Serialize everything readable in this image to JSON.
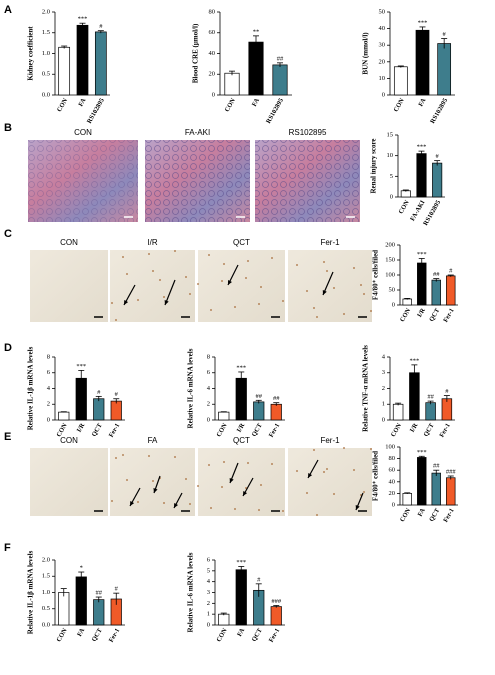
{
  "panel_labels": [
    "A",
    "B",
    "C",
    "D",
    "E",
    "F"
  ],
  "image_rows": [
    [
      "CON",
      "FA-AKI",
      "RS102895"
    ],
    [
      "CON",
      "I/R",
      "QCT",
      "Fer-1"
    ],
    [
      "CON",
      "FA",
      "QCT",
      "Fer-1"
    ]
  ],
  "chart_data": [
    {
      "type": "bar",
      "ylabel": "Kidney coefficient",
      "categories": [
        "CON",
        "FA",
        "RS102895"
      ],
      "values": [
        1.15,
        1.68,
        1.52
      ],
      "errors": [
        0.03,
        0.05,
        0.03
      ],
      "significance": [
        null,
        "***",
        "#"
      ],
      "colors": [
        "#ffffff",
        "#000000",
        "#3e7d8c"
      ],
      "ylim": [
        0,
        2
      ],
      "yticks": [
        {
          "value": 0,
          "label": "0.0"
        },
        {
          "value": 0.5,
          "label": "0.5"
        },
        {
          "value": 1,
          "label": "1.0"
        },
        {
          "value": 1.5,
          "label": "1.5"
        },
        {
          "value": 2,
          "label": "2.0"
        }
      ]
    },
    {
      "type": "bar",
      "ylabel": "Blood CRE (μmol/l)",
      "categories": [
        "CON",
        "FA",
        "RS102895"
      ],
      "values": [
        21,
        51,
        29
      ],
      "errors": [
        2,
        6,
        2
      ],
      "significance": [
        null,
        "**",
        "##"
      ],
      "colors": [
        "#ffffff",
        "#000000",
        "#3e7d8c"
      ],
      "ylim": [
        0,
        80
      ],
      "yticks": [
        0,
        20,
        40,
        60,
        80
      ]
    },
    {
      "type": "bar",
      "ylabel": "BUN (mmol/l)",
      "categories": [
        "CON",
        "FA",
        "RS102895"
      ],
      "values": [
        17,
        39,
        31
      ],
      "errors": [
        0.5,
        2,
        3
      ],
      "significance": [
        null,
        "***",
        "#"
      ],
      "colors": [
        "#ffffff",
        "#000000",
        "#3e7d8c"
      ],
      "ylim": [
        0,
        50
      ],
      "yticks": [
        0,
        10,
        20,
        30,
        40,
        50
      ]
    },
    {
      "type": "bar",
      "ylabel": "Renal injury score",
      "categories": [
        "CON",
        "FA-AKI",
        "RS102895"
      ],
      "values": [
        1.5,
        10.5,
        8.2
      ],
      "errors": [
        0.2,
        0.6,
        0.6
      ],
      "significance": [
        null,
        "***",
        "#"
      ],
      "colors": [
        "#ffffff",
        "#000000",
        "#3e7d8c"
      ],
      "ylim": [
        0,
        15
      ],
      "yticks": [
        0,
        5,
        10,
        15
      ]
    },
    {
      "type": "bar",
      "ylabel": "F4/80⁺ cells/filed",
      "categories": [
        "CON",
        "I/R",
        "QCT",
        "Fer-1"
      ],
      "values": [
        20,
        140,
        83,
        97
      ],
      "errors": [
        2,
        15,
        5,
        3
      ],
      "significance": [
        null,
        "***",
        "##",
        "#"
      ],
      "colors": [
        "#ffffff",
        "#000000",
        "#3e7d8c",
        "#f05a28"
      ],
      "ylim": [
        0,
        200
      ],
      "yticks": [
        0,
        50,
        100,
        150,
        200
      ]
    },
    {
      "type": "bar",
      "ylabel": "Relative IL-1β mRNA levels",
      "categories": [
        "CON",
        "I/R",
        "QCT",
        "Fer-1"
      ],
      "values": [
        1.0,
        5.3,
        2.7,
        2.4
      ],
      "errors": [
        0.05,
        1.0,
        0.3,
        0.3
      ],
      "significance": [
        null,
        "***",
        "#",
        "#"
      ],
      "colors": [
        "#ffffff",
        "#000000",
        "#3e7d8c",
        "#f05a28"
      ],
      "ylim": [
        0,
        8
      ],
      "yticks": [
        0,
        2,
        4,
        6,
        8
      ]
    },
    {
      "type": "bar",
      "ylabel": "Relative IL-6 mRNA levels",
      "categories": [
        "CON",
        "I/R",
        "QCT",
        "Fer-1"
      ],
      "values": [
        1.0,
        5.3,
        2.3,
        2.0
      ],
      "errors": [
        0.05,
        0.8,
        0.2,
        0.2
      ],
      "significance": [
        null,
        "***",
        "##",
        "##"
      ],
      "colors": [
        "#ffffff",
        "#000000",
        "#3e7d8c",
        "#f05a28"
      ],
      "ylim": [
        0,
        8
      ],
      "yticks": [
        0,
        2,
        4,
        6,
        8
      ]
    },
    {
      "type": "bar",
      "ylabel": "Relative TNF-α mRNA levels",
      "categories": [
        "CON",
        "I/R",
        "QCT",
        "Fer-1"
      ],
      "values": [
        1.0,
        3.0,
        1.1,
        1.35
      ],
      "errors": [
        0.07,
        0.5,
        0.1,
        0.2
      ],
      "significance": [
        null,
        "***",
        "##",
        "#"
      ],
      "colors": [
        "#ffffff",
        "#000000",
        "#3e7d8c",
        "#f05a28"
      ],
      "ylim": [
        0,
        4
      ],
      "yticks": [
        0,
        1,
        2,
        3,
        4
      ]
    },
    {
      "type": "bar",
      "ylabel": "F4/80⁺ cells/filed",
      "categories": [
        "CON",
        "FA",
        "QCT",
        "Fer-1"
      ],
      "values": [
        20,
        82,
        55,
        47
      ],
      "errors": [
        1,
        2,
        5,
        3
      ],
      "significance": [
        null,
        "***",
        "##",
        "###"
      ],
      "colors": [
        "#ffffff",
        "#000000",
        "#3e7d8c",
        "#f05a28"
      ],
      "ylim": [
        0,
        100
      ],
      "yticks": [
        0,
        20,
        40,
        60,
        80,
        100
      ]
    },
    {
      "type": "bar",
      "ylabel": "Relative IL-1β mRNA levels",
      "categories": [
        "CON",
        "FA",
        "QCT",
        "Fer-1"
      ],
      "values": [
        1.0,
        1.48,
        0.78,
        0.8
      ],
      "errors": [
        0.12,
        0.15,
        0.08,
        0.18
      ],
      "significance": [
        null,
        "*",
        "##",
        "#"
      ],
      "colors": [
        "#ffffff",
        "#000000",
        "#3e7d8c",
        "#f05a28"
      ],
      "ylim": [
        0,
        2
      ],
      "yticks": [
        {
          "value": 0,
          "label": "0.0"
        },
        {
          "value": 0.5,
          "label": "0.5"
        },
        {
          "value": 1,
          "label": "1.0"
        },
        {
          "value": 1.5,
          "label": "1.5"
        },
        {
          "value": 2,
          "label": "2.0"
        }
      ]
    },
    {
      "type": "bar",
      "ylabel": "Relative IL-6 mRNA levels",
      "categories": [
        "CON",
        "FA",
        "QCT",
        "Fer-1"
      ],
      "values": [
        1.0,
        5.1,
        3.2,
        1.7
      ],
      "errors": [
        0.1,
        0.3,
        0.6,
        0.1
      ],
      "significance": [
        null,
        "***",
        "#",
        "###"
      ],
      "colors": [
        "#ffffff",
        "#000000",
        "#3e7d8c",
        "#f05a28"
      ],
      "ylim": [
        0,
        6
      ],
      "yticks": [
        0,
        1,
        2,
        3,
        4,
        5,
        6
      ]
    }
  ]
}
